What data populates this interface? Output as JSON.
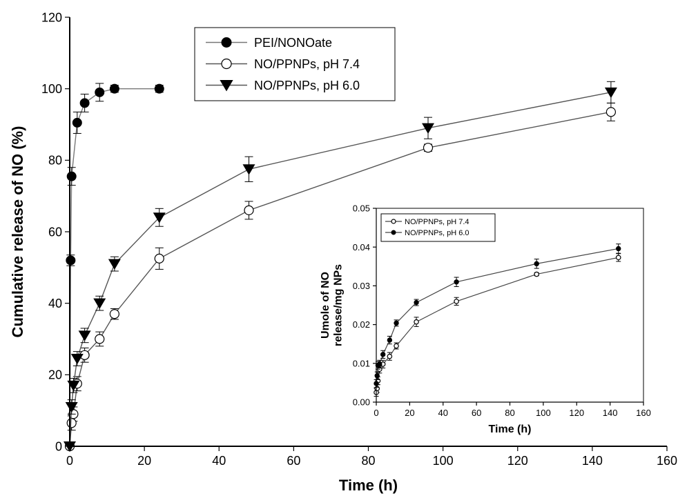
{
  "chart_data": [
    {
      "type": "line",
      "title": "",
      "xlabel": "Time (h)",
      "ylabel": "Cumulative release of NO (%)",
      "xlim": [
        0,
        160
      ],
      "ylim": [
        0,
        120
      ],
      "xticks": [
        0,
        20,
        40,
        60,
        80,
        100,
        120,
        140,
        160
      ],
      "yticks": [
        0,
        20,
        40,
        60,
        80,
        100,
        120
      ],
      "grid": false,
      "legend_position": "top-center",
      "series": [
        {
          "name": "PEI/NONOate",
          "marker": "filled-circle",
          "color": "#000000",
          "line_color": "#777777",
          "points": [
            {
              "x": 0,
              "y": 0,
              "err": 0
            },
            {
              "x": 0.25,
              "y": 52,
              "err": 1.5
            },
            {
              "x": 0.5,
              "y": 75.5,
              "err": 2.5
            },
            {
              "x": 2,
              "y": 90.5,
              "err": 3
            },
            {
              "x": 4,
              "y": 96,
              "err": 2.5
            },
            {
              "x": 8,
              "y": 99,
              "err": 2.5
            },
            {
              "x": 12,
              "y": 100,
              "err": 1
            },
            {
              "x": 24,
              "y": 100,
              "err": 1
            }
          ]
        },
        {
          "name": "NO/PPNPs, pH 7.4",
          "marker": "open-circle",
          "color": "#000000",
          "line_color": "#555555",
          "points": [
            {
              "x": 0,
              "y": 0,
              "err": 0
            },
            {
              "x": 0.5,
              "y": 6.5,
              "err": 2
            },
            {
              "x": 1,
              "y": 9,
              "err": 2
            },
            {
              "x": 2,
              "y": 17.5,
              "err": 2
            },
            {
              "x": 4,
              "y": 25.5,
              "err": 2
            },
            {
              "x": 8,
              "y": 30,
              "err": 2
            },
            {
              "x": 12,
              "y": 37,
              "err": 1.5
            },
            {
              "x": 24,
              "y": 52.5,
              "err": 3
            },
            {
              "x": 48,
              "y": 66,
              "err": 2.5
            },
            {
              "x": 96,
              "y": 83.5,
              "err": 1
            },
            {
              "x": 145,
              "y": 93.5,
              "err": 2.5
            }
          ]
        },
        {
          "name": "NO/PPNPs, pH 6.0",
          "marker": "filled-triangle-down",
          "color": "#000000",
          "line_color": "#555555",
          "points": [
            {
              "x": 0,
              "y": 0,
              "err": 0
            },
            {
              "x": 0.5,
              "y": 11,
              "err": 2
            },
            {
              "x": 1,
              "y": 17,
              "err": 2
            },
            {
              "x": 2,
              "y": 24.5,
              "err": 2
            },
            {
              "x": 4,
              "y": 31,
              "err": 2
            },
            {
              "x": 8,
              "y": 40,
              "err": 2
            },
            {
              "x": 12,
              "y": 51,
              "err": 2
            },
            {
              "x": 24,
              "y": 64,
              "err": 2.5
            },
            {
              "x": 48,
              "y": 77.5,
              "err": 3.5
            },
            {
              "x": 96,
              "y": 89,
              "err": 3
            },
            {
              "x": 145,
              "y": 99,
              "err": 3
            }
          ]
        }
      ]
    },
    {
      "type": "line",
      "title": "",
      "xlabel": "Time (h)",
      "ylabel": "Umole of NO release/mg NPs",
      "xlim": [
        0,
        160
      ],
      "ylim": [
        0,
        0.05
      ],
      "xticks": [
        0,
        20,
        40,
        60,
        80,
        100,
        120,
        140,
        160
      ],
      "yticks": [
        "0.00",
        "0.01",
        "0.02",
        "0.03",
        "0.04",
        "0.05"
      ],
      "grid": false,
      "legend_position": "top-left",
      "series": [
        {
          "name": "NO/PPNPs, pH 7.4",
          "marker": "open-circle",
          "color": "#000000",
          "points": [
            {
              "x": 0,
              "y": 0.0025,
              "err": 0.001
            },
            {
              "x": 0.5,
              "y": 0.0035,
              "err": 0.001
            },
            {
              "x": 1,
              "y": 0.0055,
              "err": 0.001
            },
            {
              "x": 2,
              "y": 0.0085,
              "err": 0.001
            },
            {
              "x": 4,
              "y": 0.0098,
              "err": 0.001
            },
            {
              "x": 8,
              "y": 0.0118,
              "err": 0.001
            },
            {
              "x": 12,
              "y": 0.0145,
              "err": 0.0008
            },
            {
              "x": 24,
              "y": 0.0207,
              "err": 0.0012
            },
            {
              "x": 48,
              "y": 0.026,
              "err": 0.001
            },
            {
              "x": 96,
              "y": 0.033,
              "err": 0.0004
            },
            {
              "x": 145,
              "y": 0.0373,
              "err": 0.001
            }
          ]
        },
        {
          "name": "NO/PPNPs, pH 6.0",
          "marker": "filled-circle",
          "color": "#000000",
          "points": [
            {
              "x": 0,
              "y": 0.0048,
              "err": 0.001
            },
            {
              "x": 0.5,
              "y": 0.0068,
              "err": 0.001
            },
            {
              "x": 1,
              "y": 0.0095,
              "err": 0.001
            },
            {
              "x": 2,
              "y": 0.0098,
              "err": 0.001
            },
            {
              "x": 4,
              "y": 0.0123,
              "err": 0.001
            },
            {
              "x": 8,
              "y": 0.016,
              "err": 0.001
            },
            {
              "x": 12,
              "y": 0.0204,
              "err": 0.0008
            },
            {
              "x": 24,
              "y": 0.0257,
              "err": 0.0008
            },
            {
              "x": 48,
              "y": 0.031,
              "err": 0.0012
            },
            {
              "x": 96,
              "y": 0.0357,
              "err": 0.0012
            },
            {
              "x": 145,
              "y": 0.0396,
              "err": 0.0012
            }
          ]
        }
      ]
    }
  ]
}
